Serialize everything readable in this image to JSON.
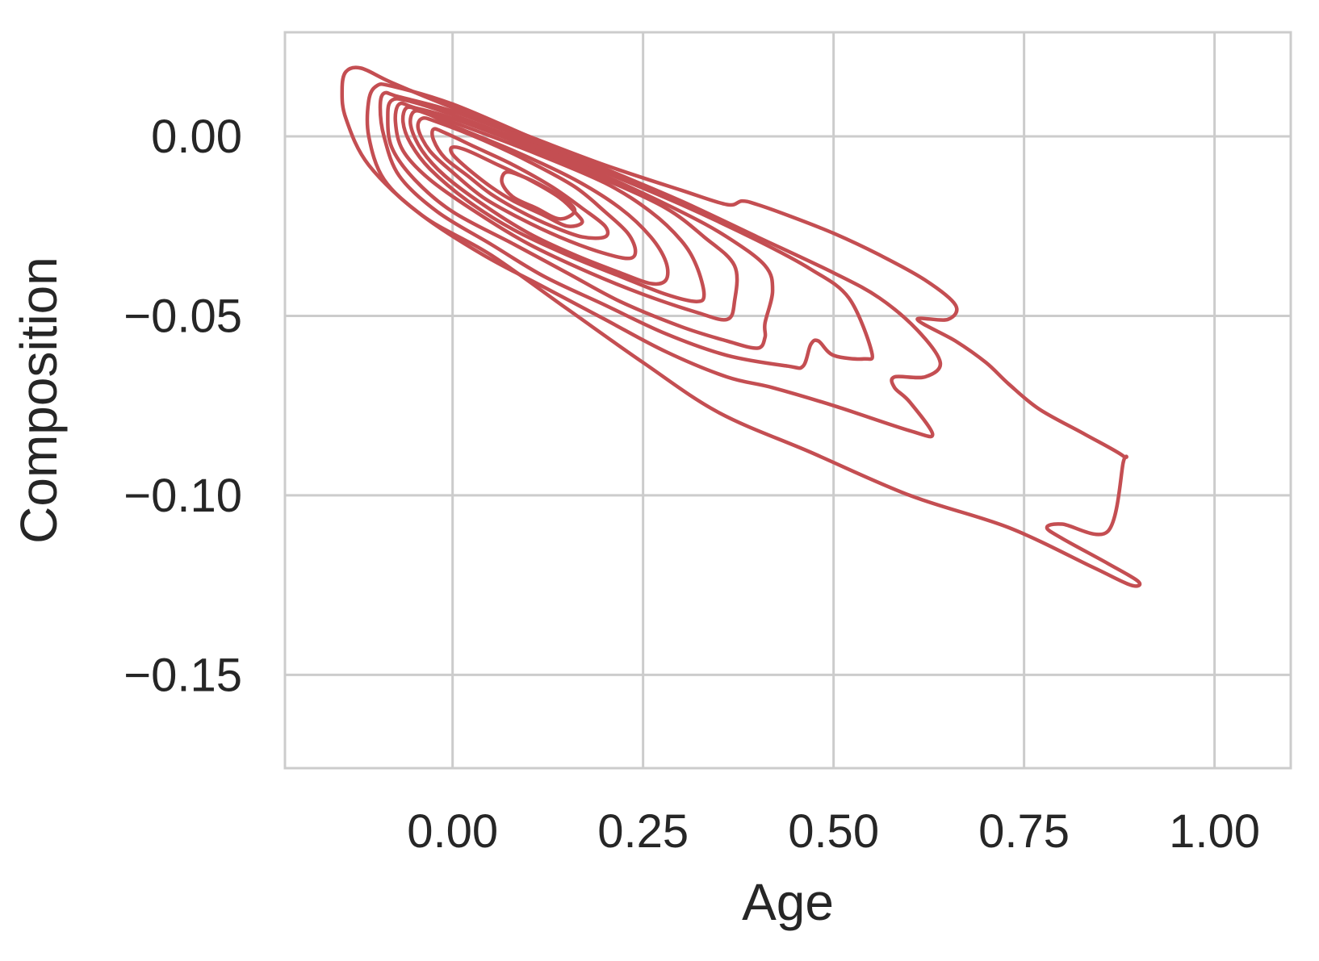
{
  "chart_data": {
    "type": "contour",
    "title": "",
    "xlabel": "Age",
    "ylabel": "Composition",
    "xlim": [
      -0.22,
      1.1
    ],
    "ylim": [
      -0.176,
      0.029
    ],
    "x_ticks": [
      0.0,
      0.25,
      0.5,
      0.75,
      1.0
    ],
    "x_tick_labels": [
      "0.00",
      "0.25",
      "0.50",
      "0.75",
      "1.00"
    ],
    "y_ticks": [
      0.0,
      -0.05,
      -0.1,
      -0.15
    ],
    "y_tick_labels": [
      "0.00",
      "−0.05",
      "−0.10",
      "−0.15"
    ],
    "grid": true,
    "legend": "none",
    "series_color": "#c44e52",
    "contours": [
      {
        "level": 1,
        "points": [
          [
            -0.14,
            0.018
          ],
          [
            -0.12,
            0.019
          ],
          [
            -0.08,
            0.015
          ],
          [
            0.0,
            0.008
          ],
          [
            0.1,
            0.0
          ],
          [
            0.2,
            -0.008
          ],
          [
            0.3,
            -0.015
          ],
          [
            0.36,
            -0.019
          ],
          [
            0.38,
            -0.018
          ],
          [
            0.4,
            -0.019
          ],
          [
            0.44,
            -0.022
          ],
          [
            0.5,
            -0.027
          ],
          [
            0.56,
            -0.033
          ],
          [
            0.62,
            -0.04
          ],
          [
            0.66,
            -0.047
          ],
          [
            0.65,
            -0.051
          ],
          [
            0.61,
            -0.051
          ],
          [
            0.66,
            -0.057
          ],
          [
            0.7,
            -0.063
          ],
          [
            0.73,
            -0.069
          ],
          [
            0.77,
            -0.076
          ],
          [
            0.83,
            -0.083
          ],
          [
            0.88,
            -0.089
          ],
          [
            0.88,
            -0.091
          ],
          [
            0.86,
            -0.11
          ],
          [
            0.8,
            -0.108
          ],
          [
            0.78,
            -0.109
          ],
          [
            0.8,
            -0.112
          ],
          [
            0.86,
            -0.119
          ],
          [
            0.9,
            -0.124
          ],
          [
            0.89,
            -0.125
          ],
          [
            0.84,
            -0.12
          ],
          [
            0.73,
            -0.109
          ],
          [
            0.6,
            -0.1
          ],
          [
            0.47,
            -0.088
          ],
          [
            0.35,
            -0.077
          ],
          [
            0.25,
            -0.063
          ],
          [
            0.15,
            -0.048
          ],
          [
            0.05,
            -0.033
          ],
          [
            -0.04,
            -0.022
          ],
          [
            -0.11,
            -0.008
          ],
          [
            -0.14,
            0.005
          ],
          [
            -0.145,
            0.013
          ],
          [
            -0.14,
            0.018
          ]
        ]
      },
      {
        "level": 2,
        "points": [
          [
            -0.1,
            0.014
          ],
          [
            -0.08,
            0.014
          ],
          [
            0.0,
            0.009
          ],
          [
            0.1,
            0.0
          ],
          [
            0.2,
            -0.009
          ],
          [
            0.3,
            -0.018
          ],
          [
            0.4,
            -0.028
          ],
          [
            0.5,
            -0.038
          ],
          [
            0.56,
            -0.045
          ],
          [
            0.61,
            -0.054
          ],
          [
            0.64,
            -0.063
          ],
          [
            0.62,
            -0.067
          ],
          [
            0.58,
            -0.067
          ],
          [
            0.58,
            -0.07
          ],
          [
            0.6,
            -0.074
          ],
          [
            0.63,
            -0.083
          ],
          [
            0.6,
            -0.082
          ],
          [
            0.5,
            -0.075
          ],
          [
            0.42,
            -0.07
          ],
          [
            0.36,
            -0.067
          ],
          [
            0.28,
            -0.06
          ],
          [
            0.2,
            -0.051
          ],
          [
            0.12,
            -0.042
          ],
          [
            0.04,
            -0.033
          ],
          [
            -0.04,
            -0.022
          ],
          [
            -0.09,
            -0.012
          ],
          [
            -0.11,
            0.0
          ],
          [
            -0.11,
            0.01
          ],
          [
            -0.1,
            0.014
          ]
        ]
      },
      {
        "level": 3,
        "points": [
          [
            -0.09,
            0.012
          ],
          [
            -0.07,
            0.011
          ],
          [
            0.0,
            0.007
          ],
          [
            0.1,
            -0.001
          ],
          [
            0.2,
            -0.01
          ],
          [
            0.3,
            -0.019
          ],
          [
            0.4,
            -0.029
          ],
          [
            0.47,
            -0.037
          ],
          [
            0.52,
            -0.045
          ],
          [
            0.55,
            -0.06
          ],
          [
            0.54,
            -0.062
          ],
          [
            0.5,
            -0.061
          ],
          [
            0.48,
            -0.057
          ],
          [
            0.47,
            -0.058
          ],
          [
            0.46,
            -0.064
          ],
          [
            0.44,
            -0.064
          ],
          [
            0.36,
            -0.061
          ],
          [
            0.28,
            -0.055
          ],
          [
            0.2,
            -0.047
          ],
          [
            0.12,
            -0.039
          ],
          [
            0.05,
            -0.03
          ],
          [
            -0.02,
            -0.021
          ],
          [
            -0.07,
            -0.011
          ],
          [
            -0.09,
            0.0
          ],
          [
            -0.095,
            0.008
          ],
          [
            -0.09,
            0.012
          ]
        ]
      },
      {
        "level": 4,
        "points": [
          [
            -0.08,
            0.01
          ],
          [
            -0.06,
            0.01
          ],
          [
            0.0,
            0.006
          ],
          [
            0.1,
            -0.002
          ],
          [
            0.2,
            -0.011
          ],
          [
            0.3,
            -0.021
          ],
          [
            0.36,
            -0.028
          ],
          [
            0.41,
            -0.036
          ],
          [
            0.42,
            -0.043
          ],
          [
            0.41,
            -0.052
          ],
          [
            0.41,
            -0.056
          ],
          [
            0.4,
            -0.059
          ],
          [
            0.36,
            -0.057
          ],
          [
            0.3,
            -0.053
          ],
          [
            0.22,
            -0.046
          ],
          [
            0.15,
            -0.038
          ],
          [
            0.08,
            -0.03
          ],
          [
            0.0,
            -0.021
          ],
          [
            -0.05,
            -0.012
          ],
          [
            -0.08,
            -0.003
          ],
          [
            -0.085,
            0.006
          ],
          [
            -0.08,
            0.01
          ]
        ]
      },
      {
        "level": 5,
        "points": [
          [
            -0.07,
            0.009
          ],
          [
            -0.05,
            0.008
          ],
          [
            0.0,
            0.005
          ],
          [
            0.1,
            -0.003
          ],
          [
            0.2,
            -0.012
          ],
          [
            0.28,
            -0.02
          ],
          [
            0.33,
            -0.028
          ],
          [
            0.37,
            -0.036
          ],
          [
            0.37,
            -0.046
          ],
          [
            0.36,
            -0.051
          ],
          [
            0.32,
            -0.049
          ],
          [
            0.25,
            -0.044
          ],
          [
            0.18,
            -0.038
          ],
          [
            0.1,
            -0.03
          ],
          [
            0.03,
            -0.021
          ],
          [
            -0.03,
            -0.012
          ],
          [
            -0.065,
            -0.004
          ],
          [
            -0.075,
            0.004
          ],
          [
            -0.07,
            0.009
          ]
        ]
      },
      {
        "level": 6,
        "points": [
          [
            -0.06,
            0.008
          ],
          [
            -0.04,
            0.007
          ],
          [
            0.0,
            0.004
          ],
          [
            0.1,
            -0.004
          ],
          [
            0.2,
            -0.013
          ],
          [
            0.26,
            -0.021
          ],
          [
            0.3,
            -0.029
          ],
          [
            0.32,
            -0.036
          ],
          [
            0.33,
            -0.044
          ],
          [
            0.32,
            -0.046
          ],
          [
            0.28,
            -0.044
          ],
          [
            0.22,
            -0.039
          ],
          [
            0.15,
            -0.033
          ],
          [
            0.08,
            -0.026
          ],
          [
            0.02,
            -0.018
          ],
          [
            -0.03,
            -0.009
          ],
          [
            -0.055,
            -0.002
          ],
          [
            -0.065,
            0.004
          ],
          [
            -0.06,
            0.008
          ]
        ]
      },
      {
        "level": 7,
        "points": [
          [
            -0.05,
            0.007
          ],
          [
            -0.03,
            0.006
          ],
          [
            0.0,
            0.003
          ],
          [
            0.08,
            -0.004
          ],
          [
            0.16,
            -0.012
          ],
          [
            0.22,
            -0.02
          ],
          [
            0.26,
            -0.028
          ],
          [
            0.28,
            -0.035
          ],
          [
            0.28,
            -0.04
          ],
          [
            0.26,
            -0.041
          ],
          [
            0.22,
            -0.038
          ],
          [
            0.16,
            -0.033
          ],
          [
            0.1,
            -0.027
          ],
          [
            0.04,
            -0.019
          ],
          [
            -0.01,
            -0.011
          ],
          [
            -0.04,
            -0.004
          ],
          [
            -0.055,
            0.003
          ],
          [
            -0.05,
            0.007
          ]
        ]
      },
      {
        "level": 8,
        "points": [
          [
            -0.04,
            0.005
          ],
          [
            -0.02,
            0.004
          ],
          [
            0.04,
            -0.001
          ],
          [
            0.1,
            -0.007
          ],
          [
            0.16,
            -0.014
          ],
          [
            0.2,
            -0.021
          ],
          [
            0.23,
            -0.027
          ],
          [
            0.24,
            -0.032
          ],
          [
            0.23,
            -0.034
          ],
          [
            0.19,
            -0.032
          ],
          [
            0.14,
            -0.028
          ],
          [
            0.09,
            -0.023
          ],
          [
            0.04,
            -0.017
          ],
          [
            0.0,
            -0.01
          ],
          [
            -0.03,
            -0.004
          ],
          [
            -0.045,
            0.002
          ],
          [
            -0.04,
            0.005
          ]
        ]
      },
      {
        "level": 9,
        "points": [
          [
            -0.025,
            0.002
          ],
          [
            -0.01,
            0.001
          ],
          [
            0.03,
            -0.003
          ],
          [
            0.08,
            -0.008
          ],
          [
            0.13,
            -0.014
          ],
          [
            0.17,
            -0.02
          ],
          [
            0.2,
            -0.025
          ],
          [
            0.2,
            -0.028
          ],
          [
            0.17,
            -0.028
          ],
          [
            0.13,
            -0.025
          ],
          [
            0.09,
            -0.021
          ],
          [
            0.05,
            -0.016
          ],
          [
            0.02,
            -0.011
          ],
          [
            -0.01,
            -0.006
          ],
          [
            -0.025,
            -0.001
          ],
          [
            -0.025,
            0.002
          ]
        ]
      },
      {
        "level": 10,
        "points": [
          [
            0.0,
            -0.003
          ],
          [
            0.02,
            -0.004
          ],
          [
            0.06,
            -0.008
          ],
          [
            0.1,
            -0.012
          ],
          [
            0.14,
            -0.017
          ],
          [
            0.16,
            -0.021
          ],
          [
            0.17,
            -0.024
          ],
          [
            0.15,
            -0.025
          ],
          [
            0.12,
            -0.022
          ],
          [
            0.08,
            -0.018
          ],
          [
            0.05,
            -0.014
          ],
          [
            0.02,
            -0.009
          ],
          [
            0.0,
            -0.005
          ],
          [
            0.0,
            -0.003
          ]
        ]
      },
      {
        "level": 11,
        "points": [
          [
            0.07,
            -0.01
          ],
          [
            0.09,
            -0.011
          ],
          [
            0.12,
            -0.014
          ],
          [
            0.15,
            -0.018
          ],
          [
            0.16,
            -0.021
          ],
          [
            0.14,
            -0.023
          ],
          [
            0.11,
            -0.02
          ],
          [
            0.08,
            -0.017
          ],
          [
            0.065,
            -0.013
          ],
          [
            0.07,
            -0.01
          ]
        ]
      }
    ]
  }
}
